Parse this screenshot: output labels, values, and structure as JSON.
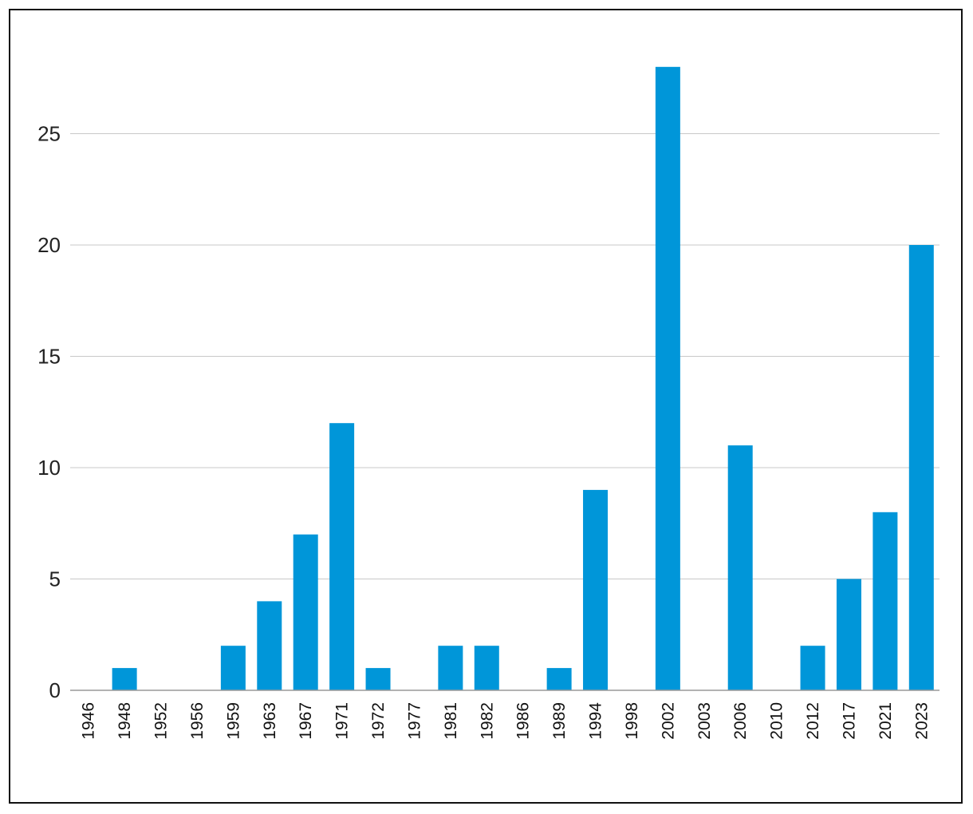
{
  "chart_data": {
    "type": "bar",
    "title": "",
    "xlabel": "",
    "ylabel": "",
    "categories": [
      "1946",
      "1948",
      "1952",
      "1956",
      "1959",
      "1963",
      "1967",
      "1971",
      "1972",
      "1977",
      "1981",
      "1982",
      "1986",
      "1989",
      "1994",
      "1998",
      "2002",
      "2003",
      "2006",
      "2010",
      "2012",
      "2017",
      "2021",
      "2023"
    ],
    "values": [
      0,
      1,
      0,
      0,
      2,
      4,
      7,
      12,
      1,
      0,
      2,
      2,
      0,
      1,
      9,
      0,
      28,
      0,
      11,
      0,
      2,
      5,
      8,
      20
    ],
    "ylim": [
      0,
      28
    ],
    "yticks": [
      0,
      5,
      10,
      15,
      20,
      25
    ],
    "grid": true,
    "bar_color": "#0096d9",
    "grid_color": "#c8c8c8",
    "axis_color": "#999999"
  }
}
